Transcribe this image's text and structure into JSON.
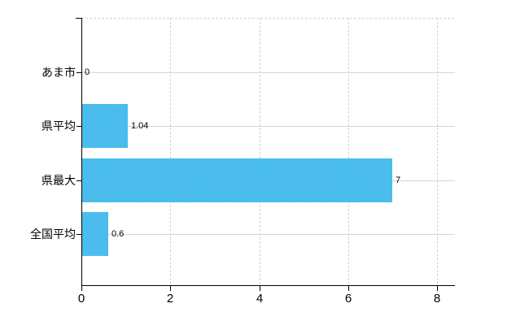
{
  "chart_data": {
    "type": "bar",
    "orientation": "horizontal",
    "title": "",
    "xlabel": "",
    "ylabel": "",
    "categories": [
      "あま市",
      "県平均",
      "県最大",
      "全国平均"
    ],
    "values": [
      0,
      1.04,
      7,
      0.6
    ],
    "value_labels": [
      "0",
      "1.04",
      "7",
      "0.6"
    ],
    "x_ticks": [
      0,
      2,
      4,
      6,
      8
    ],
    "x_tick_labels": [
      "0",
      "2",
      "4",
      "6",
      "8"
    ],
    "xlim": [
      0,
      8.4
    ],
    "legend": "none",
    "grid": {
      "horizontal_style": "solid",
      "vertical_style": "dashed",
      "top_border_style": "dashed"
    },
    "colors": {
      "bar": "#41b9ec",
      "grid": "#d5d5d5",
      "axis": "#000000",
      "text": "#000000",
      "background": "#ffffff"
    }
  }
}
